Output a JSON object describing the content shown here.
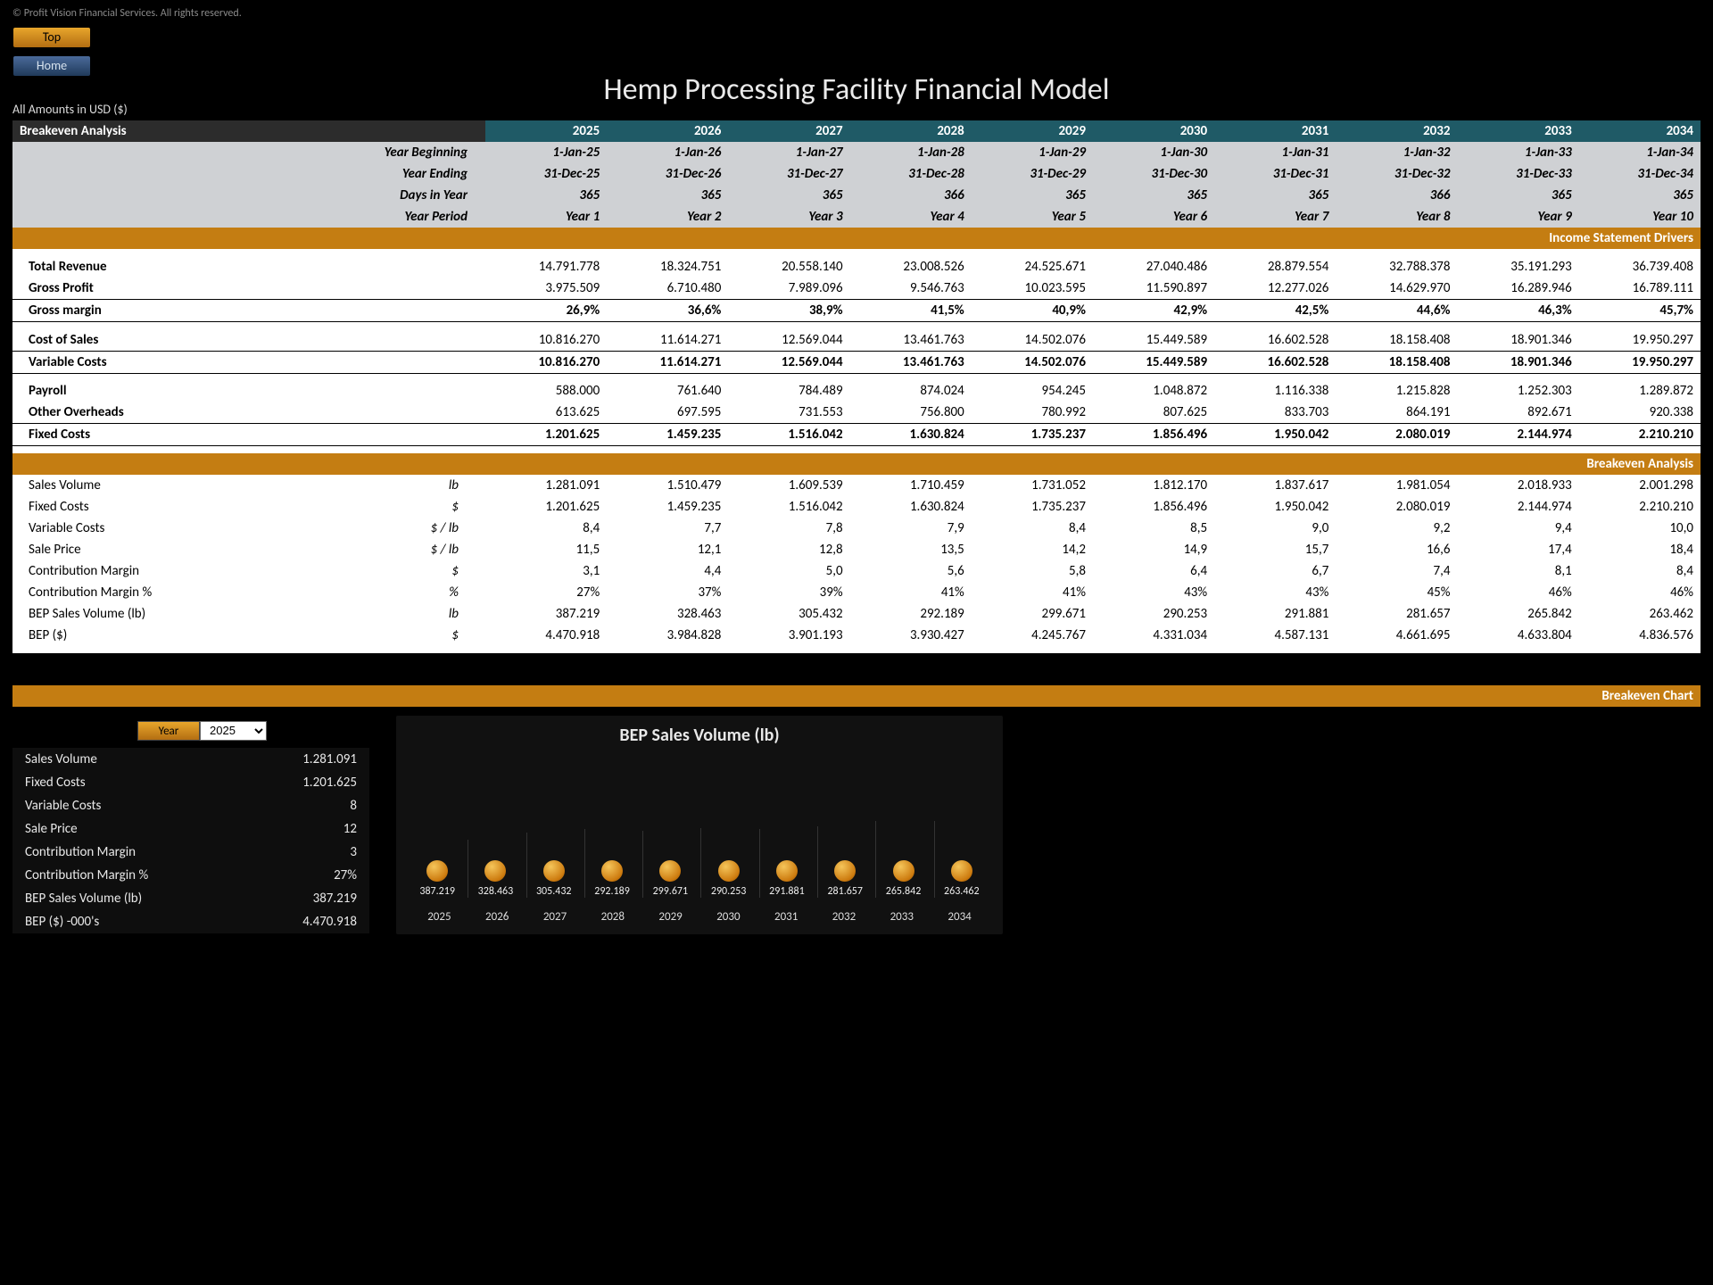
{
  "copyright": "© Profit Vision Financial Services. All rights reserved.",
  "buttons": {
    "top": "Top",
    "home": "Home"
  },
  "title": "Hemp Processing Facility Financial Model",
  "amounts_note": "All Amounts in  USD ($)",
  "section_headers": {
    "breakeven_analysis": "Breakeven Analysis",
    "income_drivers": "Income Statement Drivers",
    "breakeven_analysis2": "Breakeven Analysis",
    "breakeven_chart": "Breakeven Chart"
  },
  "years": [
    "2025",
    "2026",
    "2027",
    "2028",
    "2029",
    "2030",
    "2031",
    "2032",
    "2033",
    "2034"
  ],
  "meta_rows": [
    {
      "label": "Year Beginning",
      "values": [
        "1-Jan-25",
        "1-Jan-26",
        "1-Jan-27",
        "1-Jan-28",
        "1-Jan-29",
        "1-Jan-30",
        "1-Jan-31",
        "1-Jan-32",
        "1-Jan-33",
        "1-Jan-34"
      ]
    },
    {
      "label": "Year Ending",
      "values": [
        "31-Dec-25",
        "31-Dec-26",
        "31-Dec-27",
        "31-Dec-28",
        "31-Dec-29",
        "31-Dec-30",
        "31-Dec-31",
        "31-Dec-32",
        "31-Dec-33",
        "31-Dec-34"
      ]
    },
    {
      "label": "Days in Year",
      "values": [
        "365",
        "365",
        "365",
        "366",
        "365",
        "365",
        "365",
        "366",
        "365",
        "365"
      ]
    },
    {
      "label": "Year Period",
      "values": [
        "Year 1",
        "Year 2",
        "Year 3",
        "Year 4",
        "Year 5",
        "Year 6",
        "Year 7",
        "Year 8",
        "Year 9",
        "Year 10"
      ]
    }
  ],
  "income_rows": [
    {
      "label": "Total Revenue",
      "unit": "",
      "values": [
        "14.791.778",
        "18.324.751",
        "20.558.140",
        "23.008.526",
        "24.525.671",
        "27.040.486",
        "28.879.554",
        "32.788.378",
        "35.191.293",
        "36.739.408"
      ],
      "type": "white"
    },
    {
      "label": "Gross Profit",
      "unit": "",
      "values": [
        "3.975.509",
        "6.710.480",
        "7.989.096",
        "9.546.763",
        "10.023.595",
        "11.590.897",
        "12.277.026",
        "14.629.970",
        "16.289.946",
        "16.789.111"
      ],
      "type": "white"
    },
    {
      "label": "Gross margin",
      "unit": "",
      "values": [
        "26,9%",
        "36,6%",
        "38,9%",
        "41,5%",
        "40,9%",
        "42,9%",
        "42,5%",
        "44,6%",
        "46,3%",
        "45,7%"
      ],
      "type": "sum"
    }
  ],
  "cost_rows": [
    {
      "label": "Cost of Sales",
      "unit": "",
      "values": [
        "10.816.270",
        "11.614.271",
        "12.569.044",
        "13.461.763",
        "14.502.076",
        "15.449.589",
        "16.602.528",
        "18.158.408",
        "18.901.346",
        "19.950.297"
      ],
      "type": "white"
    },
    {
      "label": "Variable Costs",
      "unit": "",
      "values": [
        "10.816.270",
        "11.614.271",
        "12.569.044",
        "13.461.763",
        "14.502.076",
        "15.449.589",
        "16.602.528",
        "18.158.408",
        "18.901.346",
        "19.950.297"
      ],
      "type": "sum"
    }
  ],
  "fixed_rows": [
    {
      "label": "Payroll",
      "unit": "",
      "values": [
        "588.000",
        "761.640",
        "784.489",
        "874.024",
        "954.245",
        "1.048.872",
        "1.116.338",
        "1.215.828",
        "1.252.303",
        "1.289.872"
      ],
      "type": "white"
    },
    {
      "label": "Other Overheads",
      "unit": "",
      "values": [
        "613.625",
        "697.595",
        "731.553",
        "756.800",
        "780.992",
        "807.625",
        "833.703",
        "864.191",
        "892.671",
        "920.338"
      ],
      "type": "white"
    },
    {
      "label": "Fixed Costs",
      "unit": "",
      "values": [
        "1.201.625",
        "1.459.235",
        "1.516.042",
        "1.630.824",
        "1.735.237",
        "1.856.496",
        "1.950.042",
        "2.080.019",
        "2.144.974",
        "2.210.210"
      ],
      "type": "sum"
    }
  ],
  "breakeven_rows": [
    {
      "label": "Sales Volume",
      "unit": "lb",
      "values": [
        "1.281.091",
        "1.510.479",
        "1.609.539",
        "1.710.459",
        "1.731.052",
        "1.812.170",
        "1.837.617",
        "1.981.054",
        "2.018.933",
        "2.001.298"
      ]
    },
    {
      "label": "Fixed Costs",
      "unit": "$",
      "values": [
        "1.201.625",
        "1.459.235",
        "1.516.042",
        "1.630.824",
        "1.735.237",
        "1.856.496",
        "1.950.042",
        "2.080.019",
        "2.144.974",
        "2.210.210"
      ]
    },
    {
      "label": "Variable Costs",
      "unit": "$ / lb",
      "values": [
        "8,4",
        "7,7",
        "7,8",
        "7,9",
        "8,4",
        "8,5",
        "9,0",
        "9,2",
        "9,4",
        "10,0"
      ]
    },
    {
      "label": "Sale Price",
      "unit": "$ / lb",
      "values": [
        "11,5",
        "12,1",
        "12,8",
        "13,5",
        "14,2",
        "14,9",
        "15,7",
        "16,6",
        "17,4",
        "18,4"
      ]
    },
    {
      "label": "Contribution Margin",
      "unit": "$",
      "values": [
        "3,1",
        "4,4",
        "5,0",
        "5,6",
        "5,8",
        "6,4",
        "6,7",
        "7,4",
        "8,1",
        "8,4"
      ]
    },
    {
      "label": "Contribution Margin %",
      "unit": "%",
      "values": [
        "27%",
        "37%",
        "39%",
        "41%",
        "41%",
        "43%",
        "43%",
        "45%",
        "46%",
        "46%"
      ]
    },
    {
      "label": "BEP Sales Volume (lb)",
      "unit": "lb",
      "values": [
        "387.219",
        "328.463",
        "305.432",
        "292.189",
        "299.671",
        "290.253",
        "291.881",
        "281.657",
        "265.842",
        "263.462"
      ]
    },
    {
      "label": "BEP ($)",
      "unit": "$",
      "values": [
        "4.470.918",
        "3.984.828",
        "3.901.193",
        "3.930.427",
        "4.245.767",
        "4.331.034",
        "4.587.131",
        "4.661.695",
        "4.633.804",
        "4.836.576"
      ]
    }
  ],
  "year_picker": {
    "label": "Year",
    "value": "2025"
  },
  "summary": [
    {
      "label": "Sales Volume",
      "value": "1.281.091"
    },
    {
      "label": "Fixed Costs",
      "value": "1.201.625"
    },
    {
      "label": "Variable Costs",
      "value": "8"
    },
    {
      "label": "Sale Price",
      "value": "12"
    },
    {
      "label": "Contribution Margin",
      "value": "3"
    },
    {
      "label": "Contribution Margin %",
      "value": "27%"
    },
    {
      "label": "BEP Sales Volume (lb)",
      "value": "387.219"
    },
    {
      "label": "BEP ($) -000's",
      "value": "4.470.918"
    }
  ],
  "chart": {
    "title": "BEP Sales Volume (lb)",
    "labels": [
      "2025",
      "2026",
      "2027",
      "2028",
      "2029",
      "2030",
      "2031",
      "2032",
      "2033",
      "2034"
    ],
    "values": [
      "387.219",
      "328.463",
      "305.432",
      "292.189",
      "299.671",
      "290.253",
      "291.881",
      "281.657",
      "265.842",
      "263.462"
    ],
    "numbers": [
      387219,
      328463,
      305432,
      292189,
      299671,
      290253,
      291881,
      281657,
      265842,
      263462
    ],
    "ymax": 400000,
    "dot_color": "#d8861e",
    "bg": "#111111"
  }
}
